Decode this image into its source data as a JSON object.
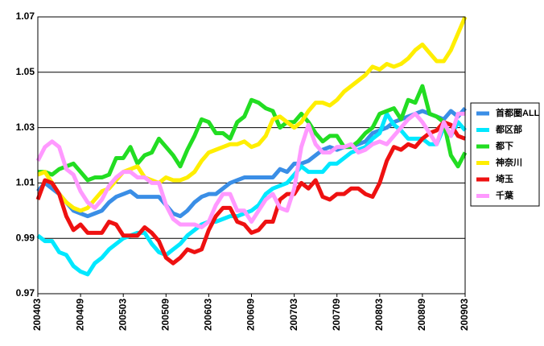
{
  "chart_data": {
    "type": "line",
    "categories": [
      "200403",
      null,
      null,
      null,
      null,
      null,
      "200409",
      null,
      null,
      null,
      null,
      null,
      "200503",
      null,
      null,
      null,
      null,
      null,
      "200509",
      null,
      null,
      null,
      null,
      null,
      "200603",
      null,
      null,
      null,
      null,
      null,
      "200609",
      null,
      null,
      null,
      null,
      null,
      "200703",
      null,
      null,
      null,
      null,
      null,
      "200709",
      null,
      null,
      null,
      null,
      null,
      "200803",
      null,
      null,
      null,
      null,
      null,
      "200809",
      null,
      null,
      null,
      null,
      null,
      "200903"
    ],
    "ylim": [
      0.97,
      1.07
    ],
    "yticks": [
      0.97,
      0.99,
      1.01,
      1.03,
      1.05,
      1.07
    ],
    "grid": true,
    "series": [
      {
        "name": "首都圏ALL",
        "color": "#3a8ee6",
        "values": [
          1.007,
          1.01,
          1.008,
          1.006,
          1.003,
          1.0,
          0.999,
          0.998,
          0.999,
          1.0,
          1.003,
          1.005,
          1.006,
          1.007,
          1.005,
          1.005,
          1.005,
          1.005,
          1.002,
          0.999,
          0.998,
          1.0,
          1.003,
          1.005,
          1.006,
          1.006,
          1.008,
          1.01,
          1.011,
          1.012,
          1.012,
          1.012,
          1.012,
          1.012,
          1.015,
          1.014,
          1.017,
          1.017,
          1.018,
          1.02,
          1.022,
          1.023,
          1.022,
          1.023,
          1.023,
          1.024,
          1.025,
          1.028,
          1.029,
          1.03,
          1.032,
          1.033,
          1.034,
          1.035,
          1.036,
          1.035,
          1.034,
          1.033,
          1.036,
          1.034,
          1.037
        ]
      },
      {
        "name": "都区部",
        "color": "#00e8ff",
        "values": [
          0.991,
          0.989,
          0.989,
          0.985,
          0.984,
          0.98,
          0.978,
          0.977,
          0.981,
          0.983,
          0.986,
          0.988,
          0.99,
          0.991,
          0.992,
          0.992,
          0.988,
          0.985,
          0.984,
          0.986,
          0.988,
          0.991,
          0.993,
          0.995,
          0.996,
          0.996,
          0.997,
          0.998,
          0.998,
          0.999,
          1.0,
          1.002,
          1.006,
          1.008,
          1.009,
          1.01,
          1.013,
          1.016,
          1.014,
          1.014,
          1.014,
          1.017,
          1.017,
          1.019,
          1.021,
          1.022,
          1.023,
          1.026,
          1.028,
          1.035,
          1.031,
          1.029,
          1.026,
          1.026,
          1.026,
          1.024,
          1.024,
          1.03,
          1.027,
          1.032,
          1.029
        ]
      },
      {
        "name": "都下",
        "color": "#22dd22",
        "values": [
          1.014,
          1.014,
          1.013,
          1.015,
          1.016,
          1.017,
          1.014,
          1.011,
          1.012,
          1.012,
          1.013,
          1.019,
          1.019,
          1.023,
          1.017,
          1.02,
          1.021,
          1.026,
          1.023,
          1.02,
          1.016,
          1.022,
          1.027,
          1.033,
          1.032,
          1.028,
          1.028,
          1.026,
          1.032,
          1.034,
          1.04,
          1.039,
          1.037,
          1.036,
          1.03,
          1.032,
          1.032,
          1.035,
          1.032,
          1.028,
          1.025,
          1.027,
          1.027,
          1.023,
          1.023,
          1.025,
          1.028,
          1.03,
          1.035,
          1.036,
          1.037,
          1.033,
          1.04,
          1.039,
          1.045,
          1.035,
          1.034,
          1.032,
          1.02,
          1.016,
          1.021
        ]
      },
      {
        "name": "神奈川",
        "color": "#ffee00",
        "values": [
          1.013,
          1.014,
          1.01,
          1.006,
          1.003,
          1.001,
          1.0,
          1.001,
          1.004,
          1.007,
          1.008,
          1.011,
          1.014,
          1.015,
          1.016,
          1.012,
          1.011,
          1.01,
          1.012,
          1.011,
          1.011,
          1.012,
          1.014,
          1.018,
          1.021,
          1.022,
          1.023,
          1.024,
          1.024,
          1.025,
          1.023,
          1.024,
          1.027,
          1.033,
          1.034,
          1.032,
          1.03,
          1.032,
          1.036,
          1.039,
          1.039,
          1.038,
          1.04,
          1.043,
          1.045,
          1.047,
          1.049,
          1.052,
          1.051,
          1.053,
          1.052,
          1.053,
          1.055,
          1.058,
          1.06,
          1.057,
          1.054,
          1.054,
          1.058,
          1.064,
          1.07
        ]
      },
      {
        "name": "埼玉",
        "color": "#ee1111",
        "values": [
          1.004,
          1.011,
          1.01,
          1.006,
          0.998,
          0.993,
          0.995,
          0.992,
          0.992,
          0.992,
          0.996,
          0.995,
          0.991,
          0.991,
          0.991,
          0.994,
          0.992,
          0.989,
          0.983,
          0.981,
          0.983,
          0.986,
          0.985,
          0.986,
          0.993,
          0.998,
          1.001,
          1.001,
          0.996,
          0.995,
          0.992,
          0.993,
          0.996,
          0.996,
          1.004,
          1.006,
          1.006,
          1.01,
          1.008,
          1.011,
          1.005,
          1.004,
          1.006,
          1.006,
          1.008,
          1.008,
          1.006,
          1.005,
          1.01,
          1.018,
          1.023,
          1.022,
          1.024,
          1.023,
          1.026,
          1.028,
          1.029,
          1.032,
          1.031,
          1.027,
          1.026
        ]
      },
      {
        "name": "千葉",
        "color": "#ff99ff",
        "values": [
          1.018,
          1.023,
          1.025,
          1.023,
          1.015,
          1.013,
          1.007,
          1.003,
          1.001,
          1.004,
          1.009,
          1.012,
          1.014,
          1.014,
          1.012,
          1.012,
          1.01,
          1.01,
          1.002,
          0.997,
          0.995,
          0.995,
          0.995,
          0.994,
          0.996,
          1.002,
          1.006,
          1.006,
          1.0,
          1.0,
          0.996,
          1.0,
          1.004,
          1.006,
          1.001,
          1.0,
          1.008,
          1.023,
          1.031,
          1.024,
          1.021,
          1.021,
          1.023,
          1.023,
          1.024,
          1.021,
          1.022,
          1.024,
          1.025,
          1.024,
          1.027,
          1.03,
          1.033,
          1.035,
          1.032,
          1.028,
          1.024,
          1.032,
          1.027,
          1.035,
          1.035
        ]
      }
    ]
  }
}
